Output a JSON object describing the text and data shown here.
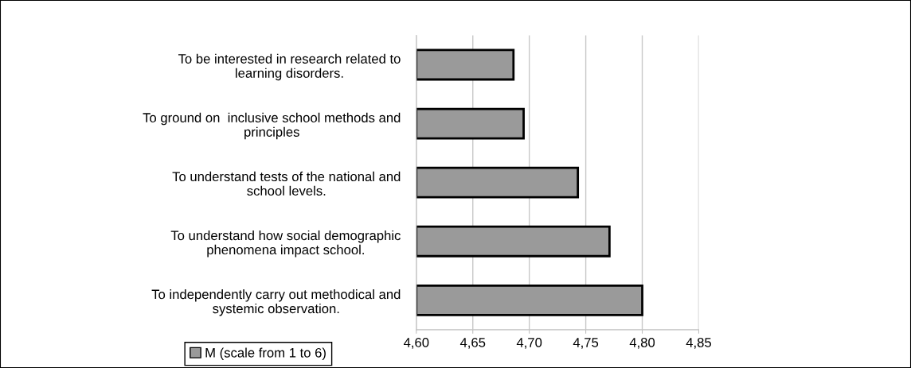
{
  "chart_data": {
    "type": "bar",
    "orientation": "horizontal",
    "categories": [
      "To be interested in research related to\nlearning disorders.",
      "To ground on  inclusive school methods and\nprinciples",
      "To understand tests of the national and\nschool levels.",
      "To understand how social demographic\nphenomena impact school.",
      "To independently carry out methodical and\nsystemic observation."
    ],
    "series": [
      {
        "name": "M (scale from 1 to 6)",
        "color": "#9a9a9a",
        "values": [
          4.686,
          4.695,
          4.743,
          4.771,
          4.8
        ]
      }
    ],
    "xlim": [
      4.6,
      4.85
    ],
    "xticks": [
      {
        "value": 4.6,
        "label": "4,60"
      },
      {
        "value": 4.65,
        "label": "4,65"
      },
      {
        "value": 4.7,
        "label": "4,70"
      },
      {
        "value": 4.75,
        "label": "4,75"
      },
      {
        "value": 4.8,
        "label": "4,80"
      },
      {
        "value": 4.85,
        "label": "4,85"
      }
    ],
    "grid": "x",
    "legend": "bottom left"
  }
}
